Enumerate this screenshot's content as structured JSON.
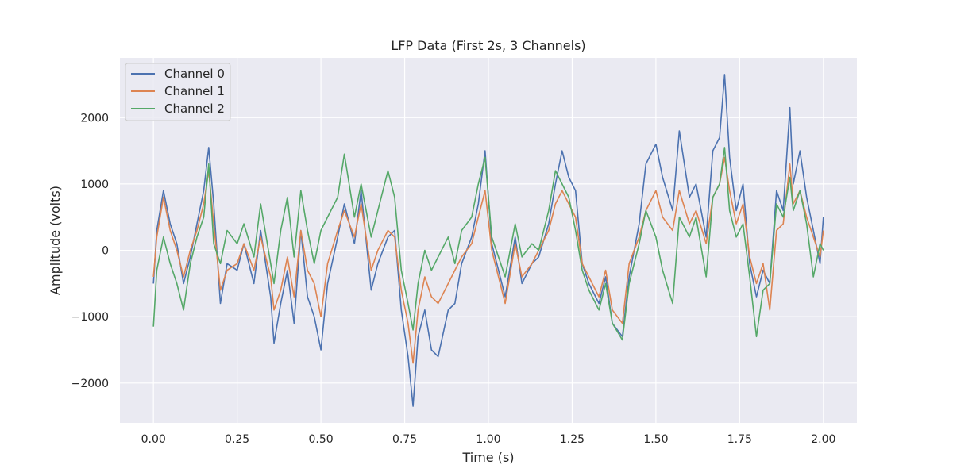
{
  "chart_data": {
    "type": "line",
    "title": "LFP Data (First 2s, 3 Channels)",
    "xlabel": "Time (s)",
    "ylabel": "Amplitude (volts)",
    "xlim": [
      -0.1,
      2.1
    ],
    "ylim": [
      -2600,
      2900
    ],
    "xticks": [
      0.0,
      0.25,
      0.5,
      0.75,
      1.0,
      1.25,
      1.5,
      1.75,
      2.0
    ],
    "xtick_labels": [
      "0.00",
      "0.25",
      "0.50",
      "0.75",
      "1.00",
      "1.25",
      "1.50",
      "1.75",
      "2.00"
    ],
    "yticks": [
      -2000,
      -1000,
      0,
      1000,
      2000
    ],
    "ytick_labels": [
      "−2000",
      "−1000",
      "0",
      "1000",
      "2000"
    ],
    "grid": true,
    "legend": "upper-left",
    "background": "#eaeaf2",
    "series": [
      {
        "name": "Channel 0",
        "color": "#4c72b0",
        "x": [
          0.0,
          0.01,
          0.03,
          0.05,
          0.07,
          0.09,
          0.11,
          0.13,
          0.15,
          0.165,
          0.18,
          0.2,
          0.22,
          0.25,
          0.27,
          0.3,
          0.32,
          0.35,
          0.36,
          0.38,
          0.4,
          0.42,
          0.44,
          0.46,
          0.48,
          0.5,
          0.52,
          0.55,
          0.57,
          0.6,
          0.62,
          0.65,
          0.67,
          0.7,
          0.72,
          0.74,
          0.76,
          0.775,
          0.79,
          0.81,
          0.83,
          0.85,
          0.88,
          0.9,
          0.92,
          0.95,
          0.97,
          0.99,
          1.01,
          1.03,
          1.05,
          1.08,
          1.1,
          1.13,
          1.15,
          1.18,
          1.2,
          1.22,
          1.24,
          1.26,
          1.28,
          1.3,
          1.33,
          1.35,
          1.37,
          1.4,
          1.42,
          1.45,
          1.47,
          1.5,
          1.52,
          1.55,
          1.57,
          1.6,
          1.62,
          1.65,
          1.67,
          1.69,
          1.705,
          1.72,
          1.74,
          1.76,
          1.78,
          1.8,
          1.82,
          1.84,
          1.86,
          1.88,
          1.9,
          1.91,
          1.93,
          1.95,
          1.97,
          1.99,
          2.0
        ],
        "y": [
          -500,
          300,
          900,
          400,
          100,
          -500,
          -100,
          400,
          900,
          1550,
          700,
          -800,
          -200,
          -300,
          100,
          -500,
          300,
          -700,
          -1400,
          -800,
          -300,
          -1100,
          300,
          -700,
          -1000,
          -1500,
          -500,
          200,
          700,
          100,
          900,
          -600,
          -200,
          200,
          300,
          -900,
          -1600,
          -2350,
          -1300,
          -900,
          -1500,
          -1600,
          -900,
          -800,
          -200,
          200,
          700,
          1500,
          100,
          -300,
          -700,
          200,
          -500,
          -200,
          -100,
          400,
          1000,
          1500,
          1100,
          900,
          -200,
          -500,
          -800,
          -400,
          -1100,
          -1300,
          -400,
          400,
          1300,
          1600,
          1100,
          600,
          1800,
          800,
          1000,
          200,
          1500,
          1700,
          2650,
          1400,
          600,
          1000,
          -200,
          -700,
          -300,
          -500,
          900,
          600,
          2150,
          1000,
          1500,
          800,
          300,
          -200,
          500
        ]
      },
      {
        "name": "Channel 1",
        "color": "#dd8452",
        "x": [
          0.0,
          0.01,
          0.03,
          0.05,
          0.07,
          0.09,
          0.11,
          0.13,
          0.15,
          0.165,
          0.18,
          0.2,
          0.22,
          0.25,
          0.27,
          0.3,
          0.32,
          0.35,
          0.36,
          0.38,
          0.4,
          0.42,
          0.44,
          0.46,
          0.48,
          0.5,
          0.52,
          0.55,
          0.57,
          0.6,
          0.62,
          0.65,
          0.67,
          0.7,
          0.72,
          0.74,
          0.76,
          0.775,
          0.79,
          0.81,
          0.83,
          0.85,
          0.88,
          0.9,
          0.92,
          0.95,
          0.97,
          0.99,
          1.01,
          1.03,
          1.05,
          1.08,
          1.1,
          1.13,
          1.15,
          1.18,
          1.2,
          1.22,
          1.24,
          1.26,
          1.28,
          1.3,
          1.33,
          1.35,
          1.37,
          1.4,
          1.42,
          1.45,
          1.47,
          1.5,
          1.52,
          1.55,
          1.57,
          1.6,
          1.62,
          1.65,
          1.67,
          1.69,
          1.705,
          1.72,
          1.74,
          1.76,
          1.78,
          1.8,
          1.82,
          1.84,
          1.86,
          1.88,
          1.9,
          1.91,
          1.93,
          1.95,
          1.97,
          1.99,
          2.0
        ],
        "y": [
          -400,
          200,
          800,
          300,
          0,
          -400,
          0,
          300,
          700,
          1200,
          400,
          -600,
          -300,
          -200,
          100,
          -300,
          200,
          -400,
          -900,
          -600,
          -100,
          -700,
          300,
          -300,
          -500,
          -1000,
          -200,
          300,
          600,
          200,
          700,
          -300,
          0,
          300,
          200,
          -600,
          -1100,
          -1700,
          -900,
          -400,
          -700,
          -800,
          -500,
          -300,
          -100,
          100,
          500,
          900,
          0,
          -400,
          -800,
          100,
          -400,
          -200,
          0,
          300,
          700,
          900,
          700,
          500,
          -200,
          -400,
          -700,
          -300,
          -900,
          -1100,
          -200,
          200,
          600,
          900,
          500,
          300,
          900,
          400,
          600,
          100,
          800,
          1000,
          1400,
          900,
          400,
          700,
          -100,
          -500,
          -200,
          -900,
          300,
          400,
          1300,
          700,
          900,
          500,
          200,
          -100,
          300
        ]
      },
      {
        "name": "Channel 2",
        "color": "#55a868",
        "x": [
          0.0,
          0.01,
          0.03,
          0.05,
          0.07,
          0.09,
          0.11,
          0.13,
          0.15,
          0.165,
          0.18,
          0.2,
          0.22,
          0.25,
          0.27,
          0.3,
          0.32,
          0.35,
          0.36,
          0.38,
          0.4,
          0.42,
          0.44,
          0.46,
          0.48,
          0.5,
          0.52,
          0.55,
          0.57,
          0.6,
          0.62,
          0.65,
          0.67,
          0.7,
          0.72,
          0.74,
          0.76,
          0.775,
          0.79,
          0.81,
          0.83,
          0.85,
          0.88,
          0.9,
          0.92,
          0.95,
          0.97,
          0.99,
          1.01,
          1.03,
          1.05,
          1.08,
          1.1,
          1.13,
          1.15,
          1.18,
          1.2,
          1.22,
          1.24,
          1.26,
          1.28,
          1.3,
          1.33,
          1.35,
          1.37,
          1.4,
          1.42,
          1.45,
          1.47,
          1.5,
          1.52,
          1.55,
          1.57,
          1.6,
          1.62,
          1.65,
          1.67,
          1.69,
          1.705,
          1.72,
          1.74,
          1.76,
          1.78,
          1.8,
          1.82,
          1.84,
          1.86,
          1.88,
          1.9,
          1.91,
          1.93,
          1.95,
          1.97,
          1.99,
          2.0
        ],
        "y": [
          -1150,
          -300,
          200,
          -200,
          -500,
          -900,
          -200,
          200,
          500,
          1300,
          100,
          -200,
          300,
          100,
          400,
          -100,
          700,
          -200,
          -500,
          300,
          800,
          -100,
          900,
          300,
          -200,
          300,
          500,
          800,
          1450,
          500,
          1000,
          200,
          600,
          1200,
          800,
          -300,
          -800,
          -1200,
          -500,
          0,
          -300,
          -100,
          200,
          -200,
          300,
          500,
          1000,
          1400,
          200,
          -100,
          -400,
          400,
          -100,
          100,
          0,
          600,
          1200,
          1000,
          800,
          300,
          -300,
          -600,
          -900,
          -500,
          -1100,
          -1350,
          -500,
          100,
          600,
          200,
          -300,
          -800,
          500,
          200,
          500,
          -400,
          800,
          1000,
          1550,
          600,
          200,
          400,
          -400,
          -1300,
          -600,
          -500,
          700,
          500,
          1100,
          600,
          900,
          400,
          -400,
          100,
          0
        ]
      }
    ]
  }
}
